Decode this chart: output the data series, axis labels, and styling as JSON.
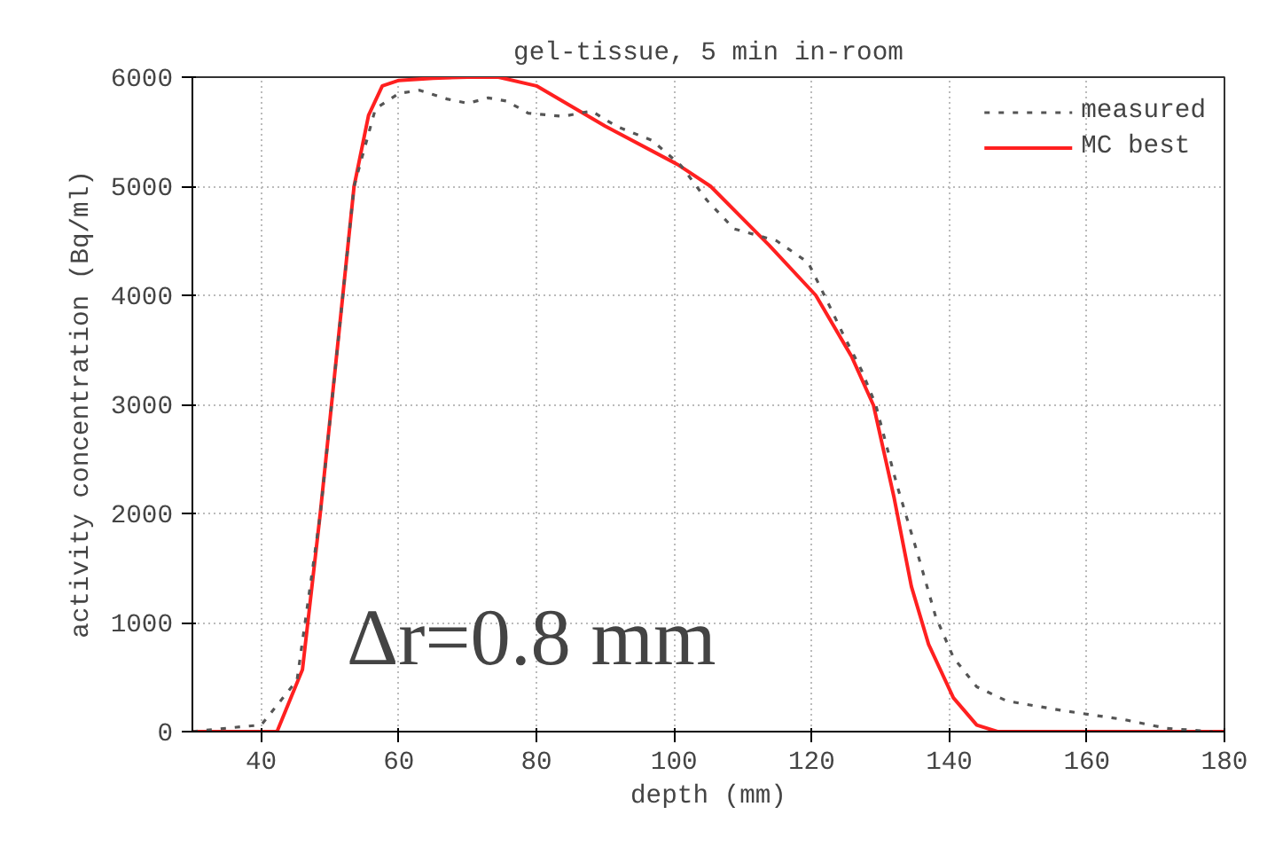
{
  "chart_data": {
    "type": "line",
    "title": "gel-tissue, 5 min in-room",
    "xlabel": "depth (mm)",
    "ylabel": "activity concentration (Bq/ml)",
    "xlim": [
      30,
      180
    ],
    "xticks": [
      40,
      60,
      80,
      100,
      120,
      140,
      160,
      180
    ],
    "ylim": [
      0,
      6000
    ],
    "yticks": [
      0,
      1000,
      2000,
      3000,
      4000,
      5000,
      6000
    ],
    "grid": true,
    "legend": "top right",
    "annotations": [
      "Δr=0.8 mm"
    ],
    "series": [
      {
        "name": "measured",
        "color": "#555555",
        "line_style": "dashed",
        "x": [
          30,
          38,
          40,
          45.2,
          48.6,
          53.5,
          56.6,
          60,
          63,
          67,
          70,
          73,
          75.7,
          78.8,
          83.9,
          88,
          91.6,
          96.8,
          101,
          104.8,
          108.7,
          114.9,
          119.5,
          122,
          124.6,
          127.2,
          129.3,
          132.4,
          135.5,
          138,
          140.6,
          144,
          148.4,
          156.8,
          165.4,
          171.6,
          178.3
        ],
        "values": [
          0,
          50,
          60,
          470,
          2000,
          5000,
          5710,
          5850,
          5880,
          5800,
          5760,
          5810,
          5780,
          5670,
          5640,
          5690,
          5550,
          5420,
          5190,
          4870,
          4610,
          4500,
          4300,
          3980,
          3640,
          3320,
          3000,
          2260,
          1610,
          1060,
          680,
          410,
          280,
          190,
          110,
          30,
          0
        ]
      },
      {
        "name": "MC best",
        "color": "#ff2020",
        "line_style": "solid",
        "x": [
          30,
          42.3,
          46,
          48.6,
          53.5,
          55.6,
          57.6,
          60,
          65,
          70,
          74.5,
          80,
          90,
          100.5,
          105.3,
          113.8,
          120.6,
          125.8,
          129,
          132,
          134.5,
          137,
          140.6,
          144,
          147,
          160,
          180
        ],
        "values": [
          0,
          0,
          570,
          2010,
          5000,
          5650,
          5920,
          5970,
          5990,
          6000,
          6000,
          5920,
          5550,
          5200,
          5000,
          4460,
          4000,
          3440,
          2990,
          2140,
          1330,
          800,
          310,
          60,
          0,
          0,
          0
        ]
      }
    ]
  }
}
